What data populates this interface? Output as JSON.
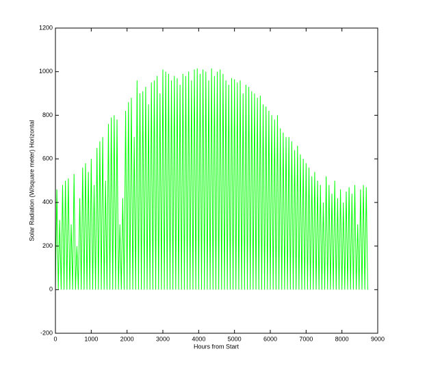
{
  "chart_data": {
    "type": "line",
    "xlabel": "Hours from Start",
    "ylabel": "Solar Radiation (W/square meter) Horizontal",
    "color": "#00ff00",
    "xlim": [
      0,
      9000
    ],
    "ylim": [
      -200,
      1200
    ],
    "xticks": [
      0,
      1000,
      2000,
      3000,
      4000,
      5000,
      6000,
      7000,
      8000,
      9000
    ],
    "yticks": [
      -200,
      0,
      200,
      400,
      600,
      800,
      1000,
      1200
    ],
    "x": [
      0,
      40,
      80,
      120,
      160,
      200,
      240,
      280,
      320,
      360,
      400,
      440,
      480,
      520,
      560,
      600,
      640,
      680,
      720,
      760,
      800,
      840,
      880,
      920,
      960,
      1000,
      1040,
      1080,
      1120,
      1160,
      1200,
      1240,
      1280,
      1320,
      1360,
      1400,
      1440,
      1480,
      1520,
      1560,
      1600,
      1640,
      1680,
      1720,
      1760,
      1800,
      1840,
      1880,
      1920,
      1960,
      2000,
      2040,
      2080,
      2120,
      2160,
      2200,
      2240,
      2280,
      2320,
      2360,
      2400,
      2440,
      2480,
      2520,
      2560,
      2600,
      2640,
      2680,
      2720,
      2760,
      2800,
      2840,
      2880,
      2920,
      2960,
      3000,
      3040,
      3080,
      3120,
      3160,
      3200,
      3240,
      3280,
      3320,
      3360,
      3400,
      3440,
      3480,
      3520,
      3560,
      3600,
      3640,
      3680,
      3720,
      3760,
      3800,
      3840,
      3880,
      3920,
      3960,
      4000,
      4040,
      4080,
      4120,
      4160,
      4200,
      4240,
      4280,
      4320,
      4360,
      4400,
      4440,
      4480,
      4520,
      4560,
      4600,
      4640,
      4680,
      4720,
      4760,
      4800,
      4840,
      4880,
      4920,
      4960,
      5000,
      5040,
      5080,
      5120,
      5160,
      5200,
      5240,
      5280,
      5320,
      5360,
      5400,
      5440,
      5480,
      5520,
      5560,
      5600,
      5640,
      5680,
      5720,
      5760,
      5800,
      5840,
      5880,
      5920,
      5960,
      6000,
      6040,
      6080,
      6120,
      6160,
      6200,
      6240,
      6280,
      6320,
      6360,
      6400,
      6440,
      6480,
      6520,
      6560,
      6600,
      6640,
      6680,
      6720,
      6760,
      6800,
      6840,
      6880,
      6920,
      6960,
      7000,
      7040,
      7080,
      7120,
      7160,
      7200,
      7240,
      7280,
      7320,
      7360,
      7400,
      7440,
      7480,
      7520,
      7560,
      7600,
      7640,
      7680,
      7720,
      7760,
      7800,
      7840,
      7880,
      7920,
      7960,
      8000,
      8040,
      8080,
      8120,
      8160,
      8200,
      8240,
      8280,
      8320,
      8360,
      8400,
      8440,
      8480,
      8520,
      8560,
      8600,
      8640,
      8680,
      8720
    ],
    "values": [
      0,
      460,
      0,
      320,
      0,
      480,
      0,
      500,
      0,
      510,
      0,
      300,
      0,
      530,
      0,
      200,
      0,
      420,
      0,
      560,
      0,
      580,
      0,
      540,
      0,
      600,
      0,
      480,
      0,
      650,
      0,
      680,
      0,
      700,
      0,
      500,
      0,
      760,
      0,
      790,
      0,
      800,
      0,
      780,
      0,
      300,
      0,
      420,
      0,
      820,
      0,
      860,
      0,
      880,
      0,
      700,
      0,
      960,
      0,
      900,
      0,
      910,
      0,
      930,
      0,
      850,
      0,
      950,
      0,
      960,
      0,
      980,
      0,
      900,
      0,
      1010,
      0,
      1000,
      0,
      990,
      0,
      960,
      0,
      980,
      0,
      970,
      0,
      940,
      0,
      990,
      0,
      980,
      0,
      1000,
      0,
      960,
      0,
      1010,
      0,
      1015,
      0,
      990,
      0,
      1010,
      0,
      1000,
      0,
      960,
      0,
      1015,
      0,
      980,
      0,
      1000,
      0,
      1010,
      0,
      990,
      0,
      960,
      0,
      940,
      0,
      970,
      0,
      965,
      0,
      950,
      0,
      960,
      0,
      900,
      0,
      940,
      0,
      930,
      0,
      910,
      0,
      900,
      0,
      880,
      0,
      890,
      0,
      850,
      0,
      840,
      0,
      820,
      0,
      800,
      0,
      780,
      0,
      800,
      0,
      740,
      0,
      720,
      0,
      700,
      0,
      700,
      0,
      680,
      0,
      640,
      0,
      660,
      0,
      620,
      0,
      600,
      0,
      580,
      0,
      560,
      0,
      520,
      0,
      540,
      0,
      500,
      0,
      480,
      0,
      400,
      0,
      520,
      0,
      480,
      0,
      440,
      0,
      500,
      0,
      420,
      0,
      460,
      0,
      400,
      0,
      450,
      0,
      470,
      0,
      440,
      0,
      480,
      0,
      300,
      0,
      460,
      0,
      480,
      0,
      470,
      0
    ]
  }
}
